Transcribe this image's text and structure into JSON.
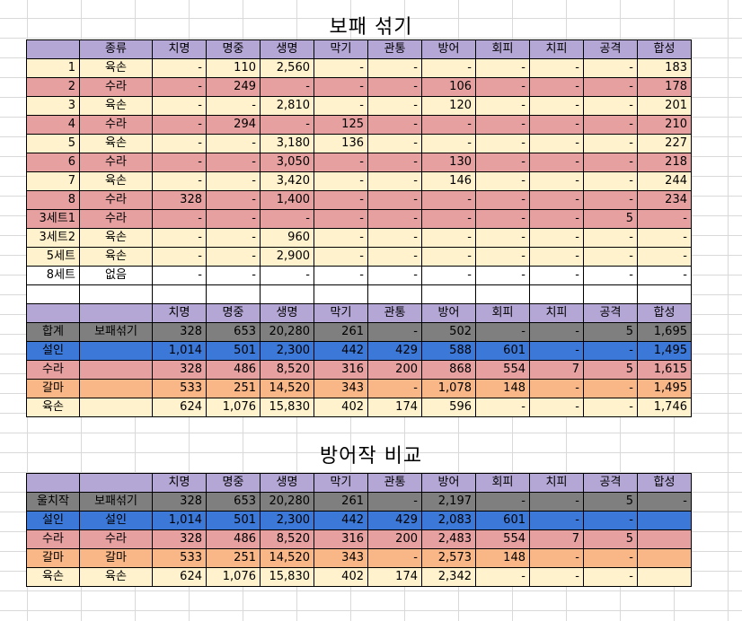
{
  "title1": "보패 섞기",
  "title2": "방어작 비교",
  "columns": [
    "종류",
    "치명",
    "명중",
    "생명",
    "막기",
    "관통",
    "방어",
    "회피",
    "치피",
    "공격",
    "합성"
  ],
  "summary_columns": [
    "치명",
    "명중",
    "생명",
    "막기",
    "관통",
    "방어",
    "회피",
    "치피",
    "공격",
    "합성"
  ],
  "table1_rows": [
    {
      "idx": "1",
      "type": "육손",
      "v": [
        "-",
        "110",
        "2,560",
        "-",
        "-",
        "-",
        "-",
        "-",
        "-",
        "183"
      ],
      "color": "yellow"
    },
    {
      "idx": "2",
      "type": "수라",
      "v": [
        "-",
        "249",
        "-",
        "-",
        "-",
        "106",
        "-",
        "-",
        "-",
        "178"
      ],
      "color": "red"
    },
    {
      "idx": "3",
      "type": "육손",
      "v": [
        "-",
        "-",
        "2,810",
        "-",
        "-",
        "120",
        "-",
        "-",
        "-",
        "201"
      ],
      "color": "yellow"
    },
    {
      "idx": "4",
      "type": "수라",
      "v": [
        "-",
        "294",
        "-",
        "125",
        "-",
        "-",
        "-",
        "-",
        "-",
        "210"
      ],
      "color": "red"
    },
    {
      "idx": "5",
      "type": "육손",
      "v": [
        "-",
        "-",
        "3,180",
        "136",
        "-",
        "-",
        "-",
        "-",
        "-",
        "227"
      ],
      "color": "yellow"
    },
    {
      "idx": "6",
      "type": "수라",
      "v": [
        "-",
        "-",
        "3,050",
        "-",
        "-",
        "130",
        "-",
        "-",
        "-",
        "218"
      ],
      "color": "red"
    },
    {
      "idx": "7",
      "type": "육손",
      "v": [
        "-",
        "-",
        "3,420",
        "-",
        "-",
        "146",
        "-",
        "-",
        "-",
        "244"
      ],
      "color": "yellow"
    },
    {
      "idx": "8",
      "type": "수라",
      "v": [
        "328",
        "-",
        "1,400",
        "-",
        "-",
        "-",
        "-",
        "-",
        "-",
        "234"
      ],
      "color": "red"
    },
    {
      "idx": "3세트1",
      "type": "수라",
      "v": [
        "-",
        "-",
        "-",
        "-",
        "-",
        "-",
        "-",
        "-",
        "5",
        "-"
      ],
      "color": "red"
    },
    {
      "idx": "3세트2",
      "type": "육손",
      "v": [
        "-",
        "-",
        "960",
        "-",
        "-",
        "-",
        "-",
        "-",
        "-",
        "-"
      ],
      "color": "yellow"
    },
    {
      "idx": "5세트",
      "type": "육손",
      "v": [
        "-",
        "-",
        "2,900",
        "-",
        "-",
        "-",
        "-",
        "-",
        "-",
        "-"
      ],
      "color": "yellow"
    },
    {
      "idx": "8세트",
      "type": "없음",
      "v": [
        "-",
        "-",
        "-",
        "-",
        "-",
        "-",
        "-",
        "-",
        "-",
        "-"
      ],
      "color": "white"
    }
  ],
  "summary_rows": [
    {
      "label": "합계",
      "type": "보패섞기",
      "v": [
        "328",
        "653",
        "20,280",
        "261",
        "-",
        "502",
        "-",
        "-",
        "5",
        "1,695"
      ],
      "color": "gray"
    },
    {
      "label": "설인",
      "type": "",
      "v": [
        "1,014",
        "501",
        "2,300",
        "442",
        "429",
        "588",
        "601",
        "-",
        "-",
        "1,495"
      ],
      "color": "blue"
    },
    {
      "label": "수라",
      "type": "",
      "v": [
        "328",
        "486",
        "8,520",
        "316",
        "200",
        "868",
        "554",
        "7",
        "5",
        "1,615"
      ],
      "color": "red"
    },
    {
      "label": "갈마",
      "type": "",
      "v": [
        "533",
        "251",
        "14,520",
        "343",
        "-",
        "1,078",
        "148",
        "-",
        "-",
        "1,495"
      ],
      "color": "orange"
    },
    {
      "label": "육손",
      "type": "",
      "v": [
        "624",
        "1,076",
        "15,830",
        "402",
        "174",
        "596",
        "-",
        "-",
        "-",
        "1,746"
      ],
      "color": "yellow"
    }
  ],
  "table2_rows": [
    {
      "label": "울치작",
      "type": "보패섞기",
      "v": [
        "328",
        "653",
        "20,280",
        "261",
        "-",
        "2,197",
        "-",
        "-",
        "5",
        "-"
      ],
      "color": "gray"
    },
    {
      "label": "설인",
      "type": "설인",
      "v": [
        "1,014",
        "501",
        "2,300",
        "442",
        "429",
        "2,083",
        "601",
        "-",
        "-",
        ""
      ],
      "color": "blue"
    },
    {
      "label": "수라",
      "type": "수라",
      "v": [
        "328",
        "486",
        "8,520",
        "316",
        "200",
        "2,483",
        "554",
        "7",
        "5",
        ""
      ],
      "color": "red"
    },
    {
      "label": "갈마",
      "type": "갈마",
      "v": [
        "533",
        "251",
        "14,520",
        "343",
        "-",
        "2,573",
        "148",
        "-",
        "-",
        ""
      ],
      "color": "orange"
    },
    {
      "label": "육손",
      "type": "육손",
      "v": [
        "624",
        "1,076",
        "15,830",
        "402",
        "174",
        "2,342",
        "-",
        "-",
        "-",
        ""
      ],
      "color": "yellow"
    }
  ]
}
